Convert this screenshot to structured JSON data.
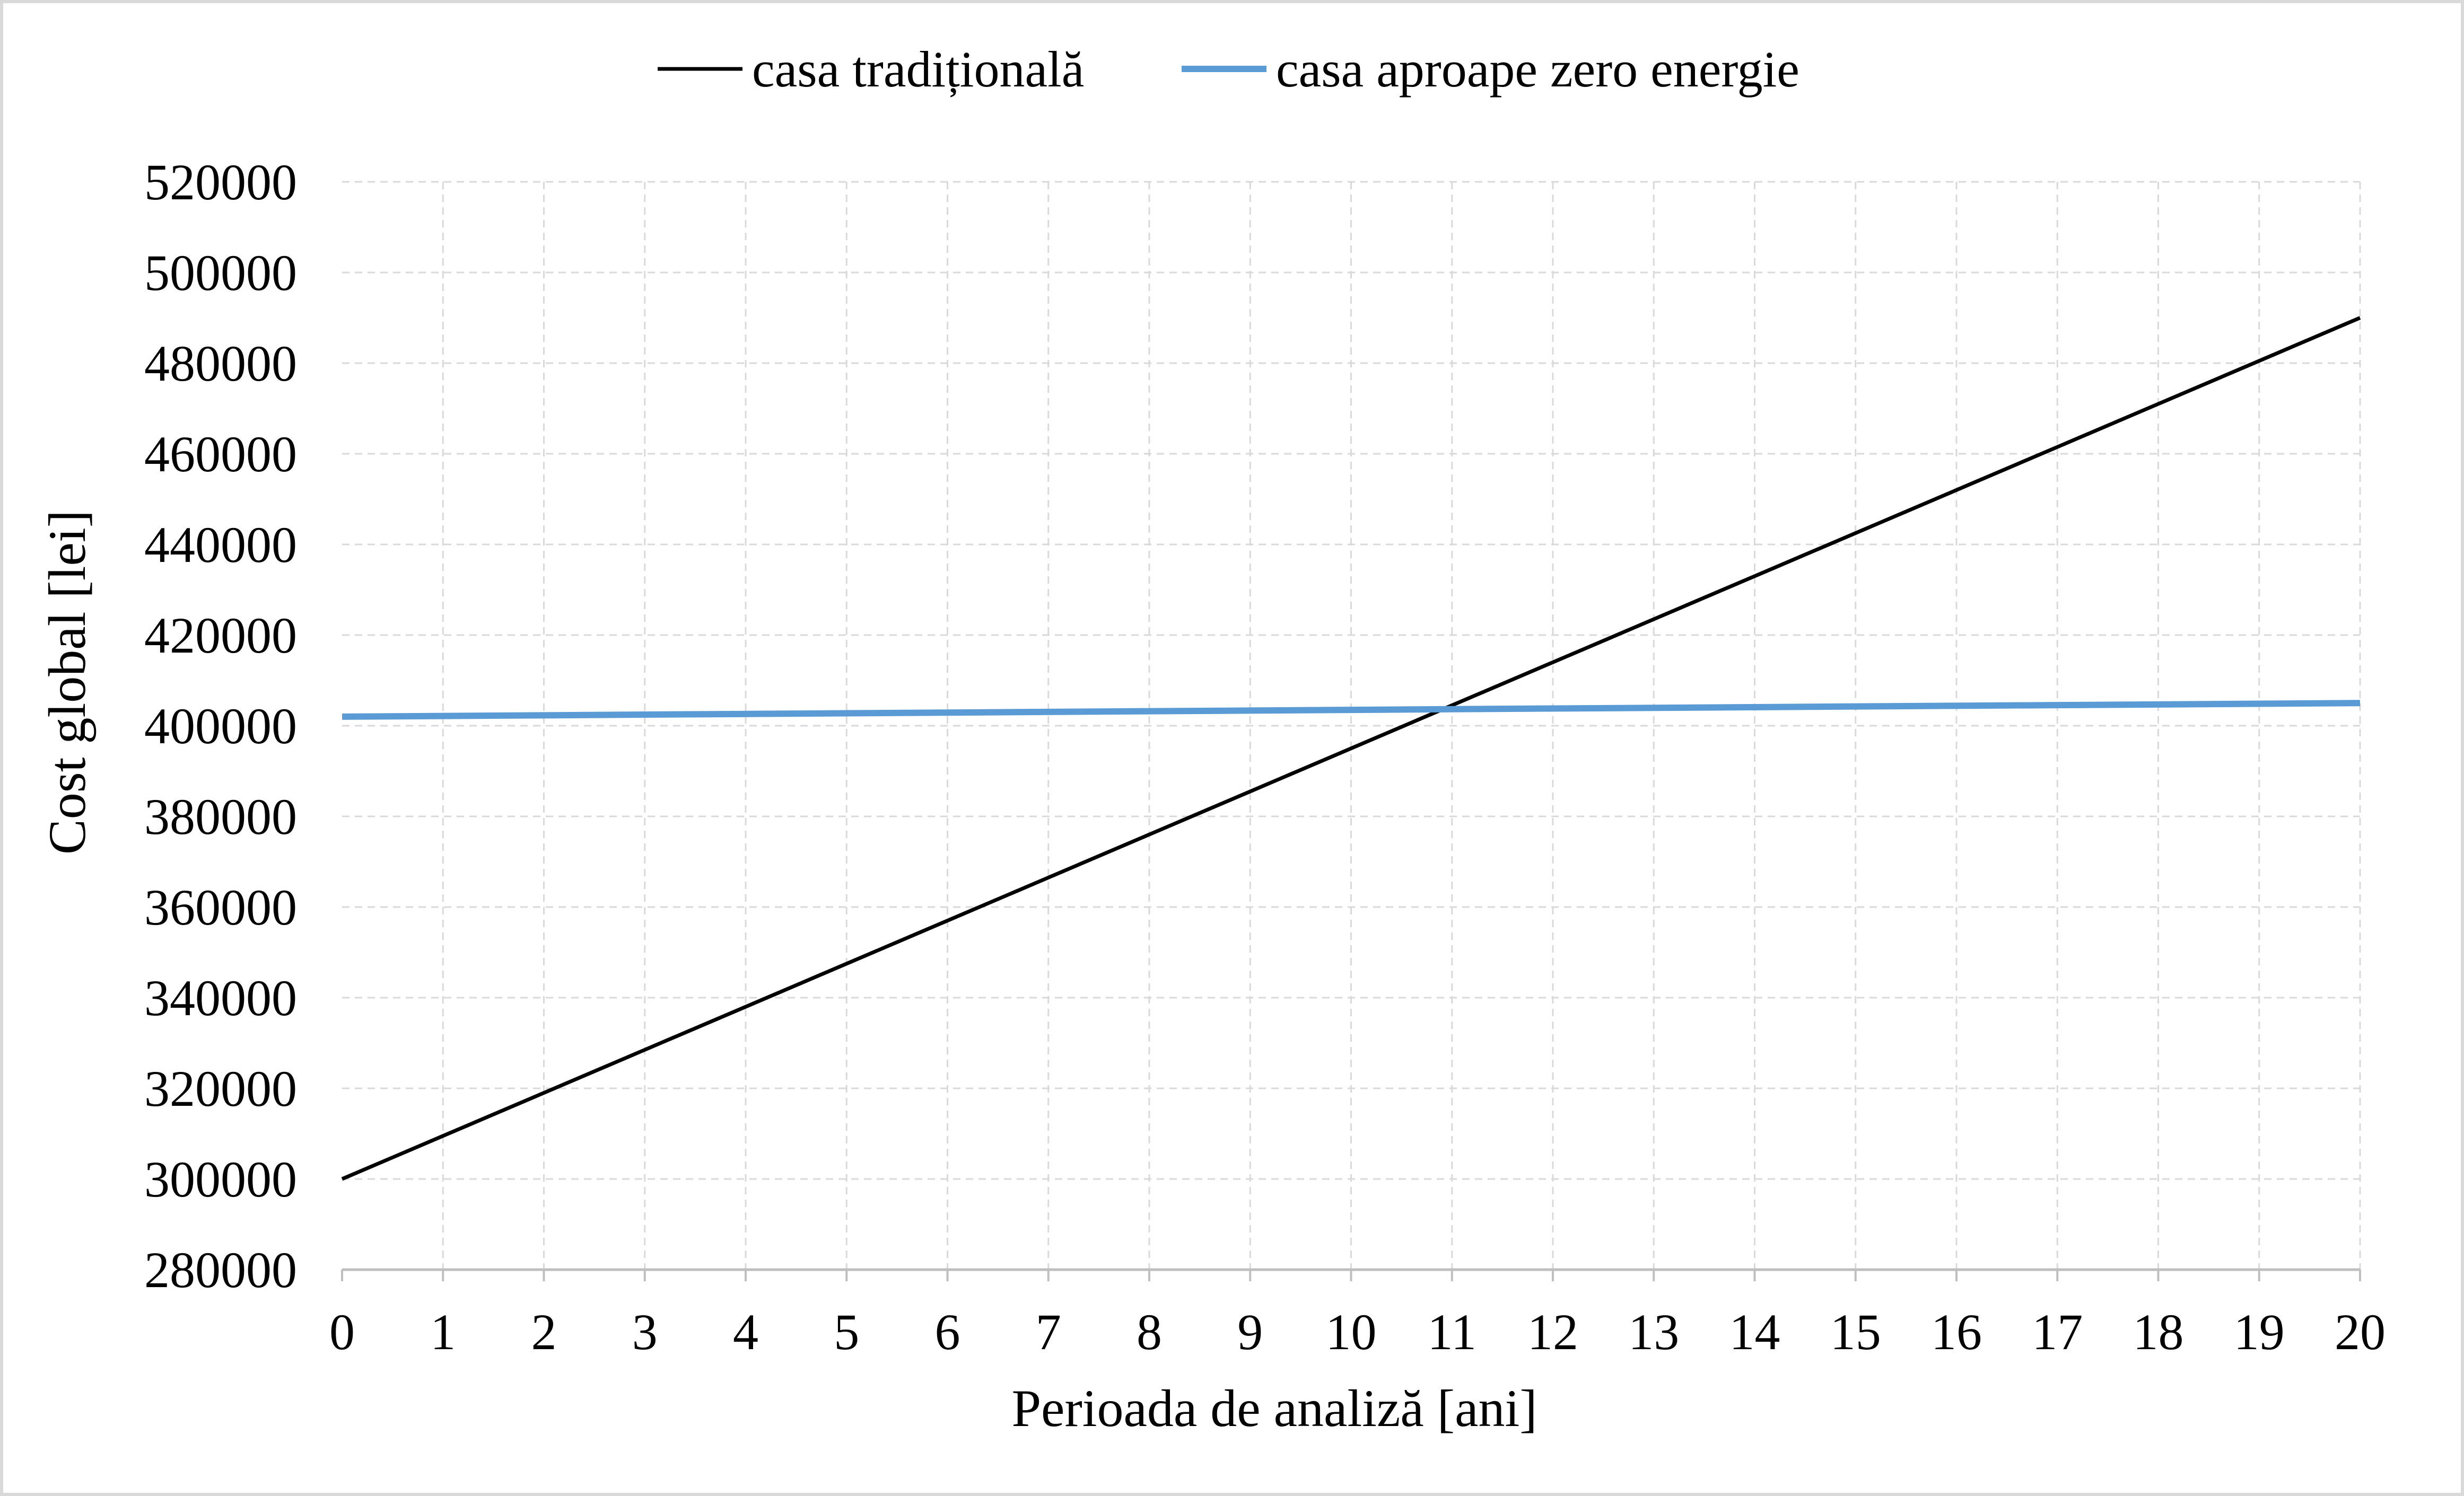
{
  "chart_data": {
    "type": "line",
    "title": "",
    "xlabel": "Perioada de analiză [ani]",
    "ylabel": "Cost global [lei]",
    "x": [
      0,
      1,
      2,
      3,
      4,
      5,
      6,
      7,
      8,
      9,
      10,
      11,
      12,
      13,
      14,
      15,
      16,
      17,
      18,
      19,
      20
    ],
    "xlim": [
      0,
      20
    ],
    "ylim": [
      280000,
      520000
    ],
    "yticks": [
      280000,
      300000,
      320000,
      340000,
      360000,
      380000,
      400000,
      420000,
      440000,
      460000,
      480000,
      500000,
      520000
    ],
    "grid": true,
    "legend_position": "top-center",
    "series": [
      {
        "name": "casa tradițională",
        "color": "#000000",
        "values": [
          300000,
          309500,
          319000,
          328500,
          338000,
          347500,
          357000,
          366500,
          376000,
          385500,
          395000,
          404500,
          414000,
          423500,
          433000,
          442500,
          452000,
          461500,
          471000,
          480500,
          490000
        ]
      },
      {
        "name": "casa aproape zero energie",
        "color": "#5b9bd5",
        "values": [
          402000,
          402150,
          402300,
          402450,
          402600,
          402750,
          402900,
          403050,
          403200,
          403350,
          403500,
          403650,
          403800,
          403950,
          404100,
          404250,
          404400,
          404550,
          404700,
          404850,
          405000
        ]
      }
    ]
  }
}
